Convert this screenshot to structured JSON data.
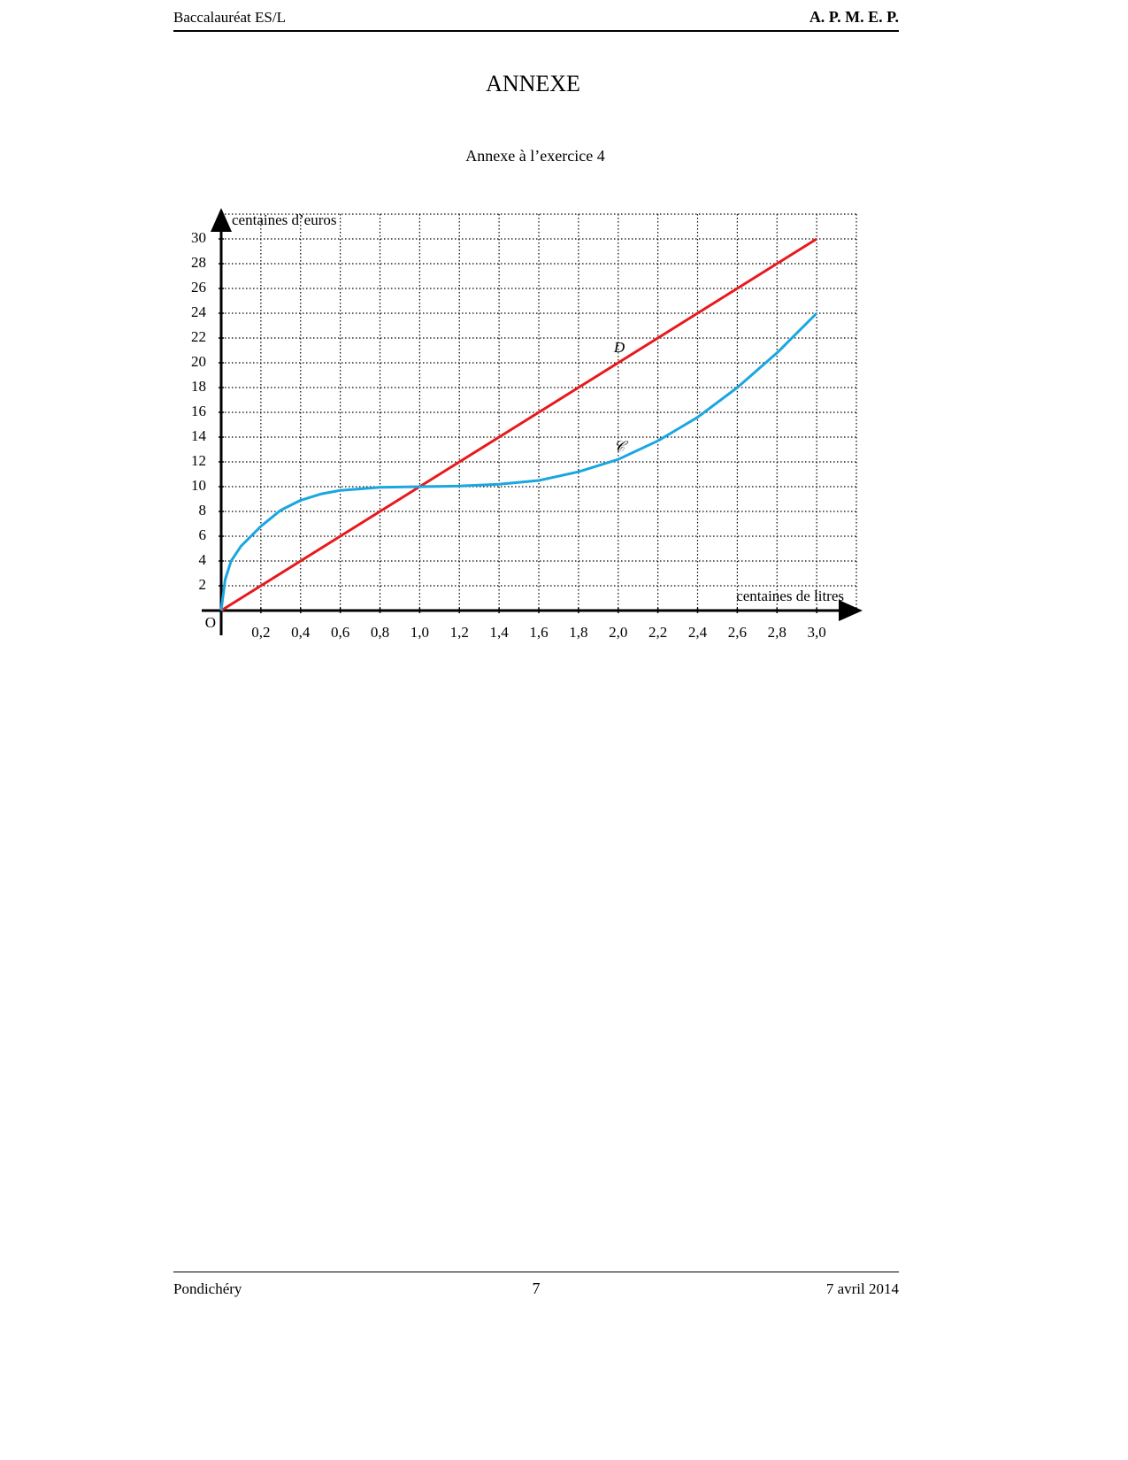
{
  "header": {
    "left": "Baccalauréat ES/L",
    "right": "A. P. M. E. P."
  },
  "title": "ANNEXE",
  "subtitle": "Annexe à l’exercice 4",
  "chart_data": {
    "type": "line",
    "x_label": "centaines de litres",
    "y_label": "centaines d’euros",
    "origin_label": "O",
    "xlim": [
      0,
      3.2
    ],
    "ylim": [
      0,
      32
    ],
    "xticks": [
      {
        "value": 0.2,
        "label": "0,2"
      },
      {
        "value": 0.4,
        "label": "0,4"
      },
      {
        "value": 0.6,
        "label": "0,6"
      },
      {
        "value": 0.8,
        "label": "0,8"
      },
      {
        "value": 1.0,
        "label": "1,0"
      },
      {
        "value": 1.2,
        "label": "1,2"
      },
      {
        "value": 1.4,
        "label": "1,4"
      },
      {
        "value": 1.6,
        "label": "1,6"
      },
      {
        "value": 1.8,
        "label": "1,8"
      },
      {
        "value": 2.0,
        "label": "2,0"
      },
      {
        "value": 2.2,
        "label": "2,2"
      },
      {
        "value": 2.4,
        "label": "2,4"
      },
      {
        "value": 2.6,
        "label": "2,6"
      },
      {
        "value": 2.8,
        "label": "2,8"
      },
      {
        "value": 3.0,
        "label": "3,0"
      }
    ],
    "yticks": [
      2,
      4,
      6,
      8,
      10,
      12,
      14,
      16,
      18,
      20,
      22,
      24,
      26,
      28,
      30
    ],
    "grid": true,
    "series": [
      {
        "name": "D",
        "color": "#e8191c",
        "x": [
          0,
          3
        ],
        "values": [
          0,
          30
        ]
      },
      {
        "name": "𝒞",
        "color": "#1aa6e0",
        "x": [
          0,
          0.02,
          0.05,
          0.1,
          0.2,
          0.3,
          0.4,
          0.5,
          0.6,
          0.8,
          1.0,
          1.2,
          1.4,
          1.6,
          1.8,
          2.0,
          2.2,
          2.4,
          2.6,
          2.8,
          3.0
        ],
        "values": [
          0,
          2.5,
          4,
          5.2,
          6.8,
          8.1,
          8.9,
          9.4,
          9.7,
          9.95,
          10,
          10.05,
          10.2,
          10.5,
          11.2,
          12.2,
          13.7,
          15.6,
          18,
          20.8,
          24
        ]
      }
    ]
  },
  "footer": {
    "left": "Pondichéry",
    "center": "7",
    "right": "7 avril 2014"
  }
}
